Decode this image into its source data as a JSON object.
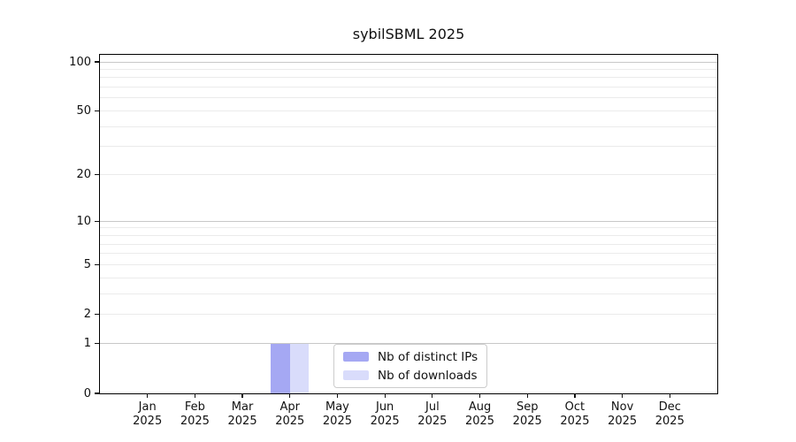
{
  "chart_data": {
    "type": "bar",
    "title": "sybilSBML 2025",
    "categories": [
      "Jan",
      "Feb",
      "Mar",
      "Apr",
      "May",
      "Jun",
      "Jul",
      "Aug",
      "Sep",
      "Oct",
      "Nov",
      "Dec"
    ],
    "x_tick_year": "2025",
    "series": [
      {
        "name": "Nb of distinct IPs",
        "color": "#a5a8f3",
        "values": [
          0,
          0,
          0,
          1,
          0,
          0,
          0,
          0,
          0,
          0,
          0,
          0
        ]
      },
      {
        "name": "Nb of downloads",
        "color": "#d9dcfb",
        "values": [
          0,
          0,
          0,
          1,
          0,
          0,
          0,
          0,
          0,
          0,
          0,
          0
        ]
      }
    ],
    "y_ticks": [
      100,
      50,
      20,
      10,
      5,
      2,
      1,
      0
    ],
    "grid_values": [
      1,
      2,
      3,
      4,
      5,
      6,
      7,
      8,
      9,
      10,
      20,
      30,
      40,
      50,
      60,
      70,
      80,
      90,
      100
    ],
    "yscale": "log1p",
    "ylim": [
      0,
      110
    ],
    "grid": "horizontal",
    "legend_position": "inside-bottom-center"
  },
  "legend": {
    "items": [
      {
        "label": "Nb of distinct IPs",
        "color": "#a5a8f3"
      },
      {
        "label": "Nb of downloads",
        "color": "#d9dcfb"
      }
    ]
  },
  "colors": {
    "background": "#ffffff",
    "axis": "#000000",
    "grid_major": "#c8c8c8",
    "grid_minor": "#ebebeb",
    "legend_border": "#cccccc"
  }
}
